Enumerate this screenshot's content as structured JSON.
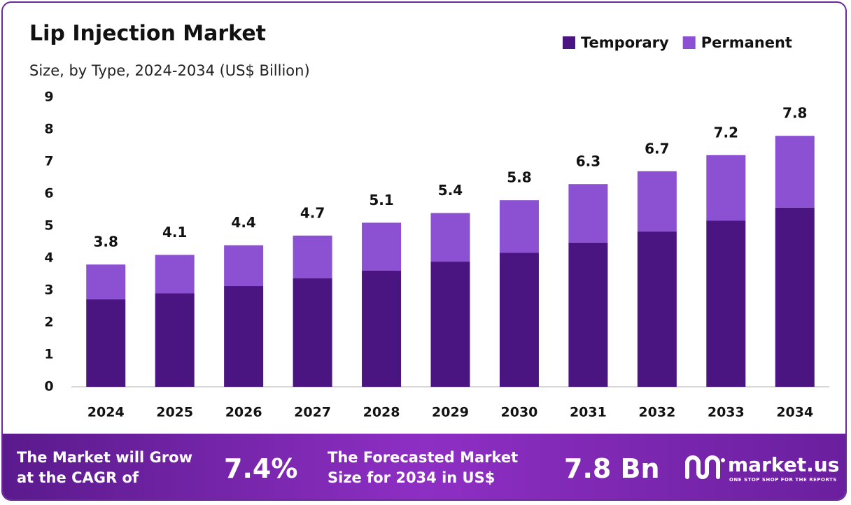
{
  "chart_data": {
    "type": "stacked_bar",
    "title": "Lip Injection Market",
    "subtitle": "Size, by Type, 2024-2034 (US$ Billion)",
    "categories": [
      "2024",
      "2025",
      "2026",
      "2027",
      "2028",
      "2029",
      "2030",
      "2031",
      "2032",
      "2033",
      "2034"
    ],
    "series": [
      {
        "name": "Temporary",
        "color": "#4b1581",
        "values": [
          2.72,
          2.91,
          3.13,
          3.37,
          3.61,
          3.89,
          4.17,
          4.48,
          4.83,
          5.17,
          5.57
        ]
      },
      {
        "name": "Permanent",
        "color": "#8c50d2",
        "values": [
          1.08,
          1.19,
          1.27,
          1.33,
          1.49,
          1.51,
          1.63,
          1.82,
          1.87,
          2.03,
          2.23
        ]
      }
    ],
    "totals": [
      3.8,
      4.1,
      4.4,
      4.7,
      5.1,
      5.4,
      5.8,
      6.3,
      6.7,
      7.2,
      7.8
    ],
    "ylim": [
      0,
      9
    ],
    "yticks": [
      0,
      1,
      2,
      3,
      4,
      5,
      6,
      7,
      8,
      9
    ],
    "grid": false,
    "legend": "top-right"
  },
  "footer": {
    "cagr_text": [
      "The Market will Grow",
      "at the CAGR of"
    ],
    "cagr_value": "7.4%",
    "forecast_text": [
      "The Forecasted Market",
      "Size for 2034 in US$"
    ],
    "forecast_value": "7.8 Bn",
    "logo": "market.us",
    "tagline": "ONE STOP SHOP FOR THE REPORTS"
  }
}
